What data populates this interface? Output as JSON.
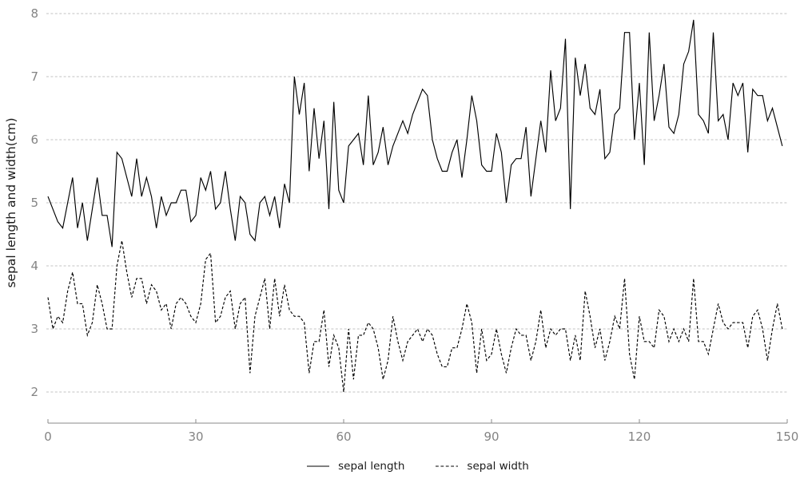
{
  "colors": {
    "background": "#ffffff",
    "grid": "#c3c3c3",
    "axis": "#8a8a8a",
    "tick_label": "#848484",
    "text": "#1a1a1a",
    "series_line": "#000000"
  },
  "chart_data": {
    "type": "line",
    "title": "",
    "xlabel": "",
    "ylabel": "sepal length and width(cm)",
    "xticks": [
      0,
      30,
      60,
      90,
      120,
      150
    ],
    "yticks": [
      2,
      3,
      4,
      5,
      6,
      7,
      8
    ],
    "xlim": [
      0,
      150
    ],
    "ylim": [
      2,
      8
    ],
    "grid": "horizontal dashed lines at each y tick",
    "legend_position": "bottom-center",
    "n_points": 150,
    "x_is_sample_index": true,
    "series": [
      {
        "name": "sepal length",
        "line_style": "solid",
        "color": "#000000",
        "values": [
          5.1,
          4.9,
          4.7,
          4.6,
          5.0,
          5.4,
          4.6,
          5.0,
          4.4,
          4.9,
          5.4,
          4.8,
          4.8,
          4.3,
          5.8,
          5.7,
          5.4,
          5.1,
          5.7,
          5.1,
          5.4,
          5.1,
          4.6,
          5.1,
          4.8,
          5.0,
          5.0,
          5.2,
          5.2,
          4.7,
          4.8,
          5.4,
          5.2,
          5.5,
          4.9,
          5.0,
          5.5,
          4.9,
          4.4,
          5.1,
          5.0,
          4.5,
          4.4,
          5.0,
          5.1,
          4.8,
          5.1,
          4.6,
          5.3,
          5.0,
          7.0,
          6.4,
          6.9,
          5.5,
          6.5,
          5.7,
          6.3,
          4.9,
          6.6,
          5.2,
          5.0,
          5.9,
          6.0,
          6.1,
          5.6,
          6.7,
          5.6,
          5.8,
          6.2,
          5.6,
          5.9,
          6.1,
          6.3,
          6.1,
          6.4,
          6.6,
          6.8,
          6.7,
          6.0,
          5.7,
          5.5,
          5.5,
          5.8,
          6.0,
          5.4,
          6.0,
          6.7,
          6.3,
          5.6,
          5.5,
          5.5,
          6.1,
          5.8,
          5.0,
          5.6,
          5.7,
          5.7,
          6.2,
          5.1,
          5.7,
          6.3,
          5.8,
          7.1,
          6.3,
          6.5,
          7.6,
          4.9,
          7.3,
          6.7,
          7.2,
          6.5,
          6.4,
          6.8,
          5.7,
          5.8,
          6.4,
          6.5,
          7.7,
          7.7,
          6.0,
          6.9,
          5.6,
          7.7,
          6.3,
          6.7,
          7.2,
          6.2,
          6.1,
          6.4,
          7.2,
          7.4,
          7.9,
          6.4,
          6.3,
          6.1,
          7.7,
          6.3,
          6.4,
          6.0,
          6.9,
          6.7,
          6.9,
          5.8,
          6.8,
          6.7,
          6.7,
          6.3,
          6.5,
          6.2,
          5.9
        ]
      },
      {
        "name": "sepal width",
        "line_style": "dashed",
        "color": "#000000",
        "values": [
          3.5,
          3.0,
          3.2,
          3.1,
          3.6,
          3.9,
          3.4,
          3.4,
          2.9,
          3.1,
          3.7,
          3.4,
          3.0,
          3.0,
          4.0,
          4.4,
          3.9,
          3.5,
          3.8,
          3.8,
          3.4,
          3.7,
          3.6,
          3.3,
          3.4,
          3.0,
          3.4,
          3.5,
          3.4,
          3.2,
          3.1,
          3.4,
          4.1,
          4.2,
          3.1,
          3.2,
          3.5,
          3.6,
          3.0,
          3.4,
          3.5,
          2.3,
          3.2,
          3.5,
          3.8,
          3.0,
          3.8,
          3.2,
          3.7,
          3.3,
          3.2,
          3.2,
          3.1,
          2.3,
          2.8,
          2.8,
          3.3,
          2.4,
          2.9,
          2.7,
          2.0,
          3.0,
          2.2,
          2.9,
          2.9,
          3.1,
          3.0,
          2.7,
          2.2,
          2.5,
          3.2,
          2.8,
          2.5,
          2.8,
          2.9,
          3.0,
          2.8,
          3.0,
          2.9,
          2.6,
          2.4,
          2.4,
          2.7,
          2.7,
          3.0,
          3.4,
          3.1,
          2.3,
          3.0,
          2.5,
          2.6,
          3.0,
          2.6,
          2.3,
          2.7,
          3.0,
          2.9,
          2.9,
          2.5,
          2.8,
          3.3,
          2.7,
          3.0,
          2.9,
          3.0,
          3.0,
          2.5,
          2.9,
          2.5,
          3.6,
          3.2,
          2.7,
          3.0,
          2.5,
          2.8,
          3.2,
          3.0,
          3.8,
          2.6,
          2.2,
          3.2,
          2.8,
          2.8,
          2.7,
          3.3,
          3.2,
          2.8,
          3.0,
          2.8,
          3.0,
          2.8,
          3.8,
          2.8,
          2.8,
          2.6,
          3.0,
          3.4,
          3.1,
          3.0,
          3.1,
          3.1,
          3.1,
          2.7,
          3.2,
          3.3,
          3.0,
          2.5,
          3.0,
          3.4,
          3.0
        ]
      }
    ]
  }
}
